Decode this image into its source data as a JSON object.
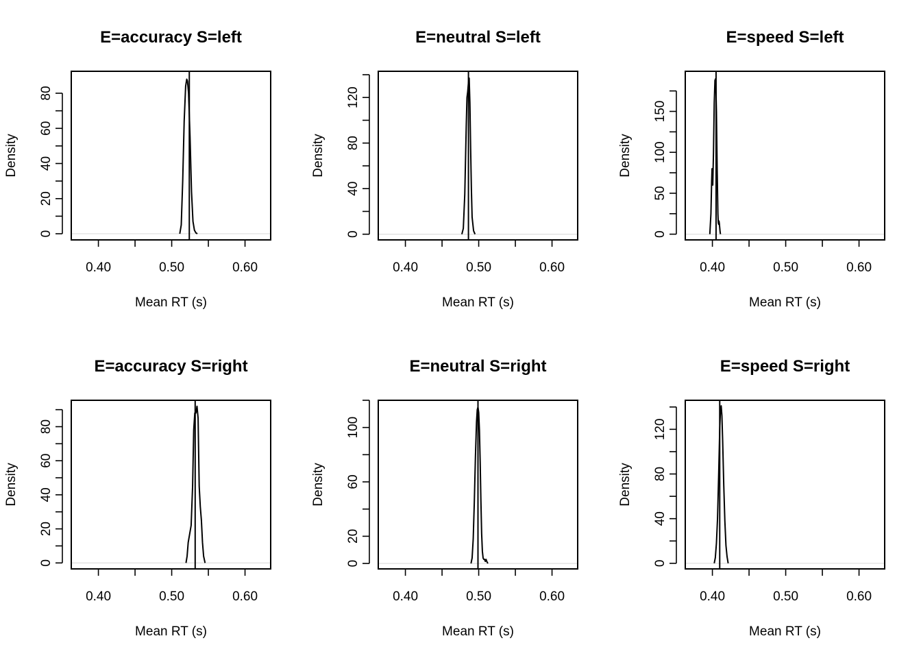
{
  "chart_data": [
    {
      "type": "line",
      "title": "E=accuracy S=left",
      "xlabel": "Mean RT (s)",
      "ylabel": "Density",
      "xlim": [
        0.363,
        0.635
      ],
      "ylim": [
        -3.5,
        92.5
      ],
      "x_ticks": [
        0.4,
        0.45,
        0.5,
        0.55,
        0.6
      ],
      "x_tick_labels": [
        "0.40",
        "0.50",
        "0.60"
      ],
      "x_tick_label_values": [
        0.4,
        0.5,
        0.6
      ],
      "y_ticks": [
        0,
        10,
        20,
        30,
        40,
        50,
        60,
        70,
        80
      ],
      "y_tick_labels": [
        "0",
        "20",
        "40",
        "60",
        "80"
      ],
      "y_tick_label_values": [
        0,
        20,
        40,
        60,
        80
      ],
      "observed": 0.524,
      "series": [
        {
          "name": "density",
          "x": [
            0.511,
            0.513,
            0.515,
            0.517,
            0.519,
            0.5205,
            0.5215,
            0.523,
            0.525,
            0.527,
            0.529,
            0.531,
            0.533,
            0.535
          ],
          "y": [
            0,
            5,
            30,
            64,
            84,
            88,
            87,
            80,
            55,
            24,
            7,
            2,
            0.5,
            0
          ]
        }
      ]
    },
    {
      "type": "line",
      "title": "E=neutral S=left",
      "xlabel": "Mean RT (s)",
      "ylabel": "Density",
      "xlim": [
        0.363,
        0.635
      ],
      "ylim": [
        -5,
        143
      ],
      "x_ticks": [
        0.4,
        0.45,
        0.5,
        0.55,
        0.6
      ],
      "x_tick_labels": [
        "0.40",
        "0.50",
        "0.60"
      ],
      "x_tick_label_values": [
        0.4,
        0.5,
        0.6
      ],
      "y_ticks": [
        0,
        20,
        40,
        60,
        80,
        100,
        120,
        140
      ],
      "y_tick_labels": [
        "0",
        "40",
        "80",
        "120"
      ],
      "y_tick_label_values": [
        0,
        40,
        80,
        120
      ],
      "observed": 0.486,
      "series": [
        {
          "name": "density",
          "x": [
            0.477,
            0.479,
            0.481,
            0.483,
            0.484,
            0.485,
            0.486,
            0.487,
            0.488,
            0.489,
            0.49,
            0.491,
            0.493,
            0.495
          ],
          "y": [
            0,
            5,
            35,
            95,
            120,
            125,
            133,
            137,
            115,
            75,
            40,
            15,
            3,
            0
          ]
        }
      ]
    },
    {
      "type": "line",
      "title": "E=speed S=left",
      "xlabel": "Mean RT (s)",
      "ylabel": "Density",
      "xlim": [
        0.363,
        0.635
      ],
      "ylim": [
        -7,
        199
      ],
      "x_ticks": [
        0.4,
        0.45,
        0.5,
        0.55,
        0.6
      ],
      "x_tick_labels": [
        "0.40",
        "0.50",
        "0.60"
      ],
      "x_tick_label_values": [
        0.4,
        0.5,
        0.6
      ],
      "y_ticks": [
        0,
        25,
        50,
        75,
        100,
        125,
        150,
        175
      ],
      "y_tick_labels": [
        "0",
        "50",
        "100",
        "150"
      ],
      "y_tick_label_values": [
        0,
        50,
        100,
        150
      ],
      "observed": 0.405,
      "series": [
        {
          "name": "density",
          "x": [
            0.3965,
            0.398,
            0.399,
            0.3995,
            0.4005,
            0.4015,
            0.4025,
            0.4035,
            0.4045,
            0.4055,
            0.4065,
            0.4075,
            0.408,
            0.4085,
            0.409,
            0.4095,
            0.41,
            0.4105,
            0.411
          ],
          "y": [
            0,
            25,
            65,
            80,
            60,
            100,
            160,
            188,
            190,
            150,
            80,
            25,
            14,
            12,
            16,
            13,
            8,
            3,
            0
          ]
        }
      ]
    },
    {
      "type": "line",
      "title": "E=accuracy S=right",
      "xlabel": "Mean RT (s)",
      "ylabel": "Density",
      "xlim": [
        0.363,
        0.635
      ],
      "ylim": [
        -3.5,
        95.5
      ],
      "x_ticks": [
        0.4,
        0.45,
        0.5,
        0.55,
        0.6
      ],
      "x_tick_labels": [
        "0.40",
        "0.50",
        "0.60"
      ],
      "x_tick_label_values": [
        0.4,
        0.5,
        0.6
      ],
      "y_ticks": [
        0,
        10,
        20,
        30,
        40,
        50,
        60,
        70,
        80,
        90
      ],
      "y_tick_labels": [
        "0",
        "20",
        "40",
        "60",
        "80"
      ],
      "y_tick_label_values": [
        0,
        20,
        40,
        60,
        80
      ],
      "observed": 0.532,
      "series": [
        {
          "name": "density",
          "x": [
            0.5195,
            0.521,
            0.5225,
            0.5245,
            0.5265,
            0.5285,
            0.53,
            0.5315,
            0.533,
            0.5345,
            0.536,
            0.5375,
            0.539,
            0.5405,
            0.542,
            0.5435,
            0.5455
          ],
          "y": [
            0,
            4,
            12,
            17,
            22,
            45,
            78,
            88,
            88,
            92,
            85,
            45,
            33,
            25,
            12,
            4,
            0
          ]
        }
      ]
    },
    {
      "type": "line",
      "title": "E=neutral S=right",
      "xlabel": "Mean RT (s)",
      "ylabel": "Density",
      "xlim": [
        0.363,
        0.635
      ],
      "ylim": [
        -4,
        120
      ],
      "x_ticks": [
        0.4,
        0.45,
        0.5,
        0.55,
        0.6
      ],
      "x_tick_labels": [
        "0.40",
        "0.50",
        "0.60"
      ],
      "x_tick_label_values": [
        0.4,
        0.5,
        0.6
      ],
      "y_ticks": [
        0,
        20,
        40,
        60,
        80,
        100,
        120
      ],
      "y_tick_labels": [
        "0",
        "20",
        "60",
        "100"
      ],
      "y_tick_label_values": [
        0,
        20,
        60,
        100
      ],
      "observed": 0.499,
      "series": [
        {
          "name": "density",
          "x": [
            0.4895,
            0.491,
            0.4925,
            0.494,
            0.4955,
            0.497,
            0.498,
            0.499,
            0.5,
            0.501,
            0.502,
            0.503,
            0.504,
            0.505,
            0.506,
            0.507,
            0.508,
            0.509,
            0.51,
            0.511,
            0.5125
          ],
          "y": [
            0,
            4,
            18,
            45,
            78,
            104,
            113,
            115,
            111,
            98,
            75,
            46,
            22,
            9,
            4,
            3,
            3,
            1.5,
            3,
            1.5,
            0
          ]
        }
      ]
    },
    {
      "type": "line",
      "title": "E=speed S=right",
      "xlabel": "Mean RT (s)",
      "ylabel": "Density",
      "xlim": [
        0.363,
        0.635
      ],
      "ylim": [
        -5,
        146
      ],
      "x_ticks": [
        0.4,
        0.45,
        0.5,
        0.55,
        0.6
      ],
      "x_tick_labels": [
        "0.40",
        "0.50",
        "0.60"
      ],
      "x_tick_label_values": [
        0.4,
        0.5,
        0.6
      ],
      "y_ticks": [
        0,
        20,
        40,
        60,
        80,
        100,
        120,
        140
      ],
      "y_tick_labels": [
        "0",
        "40",
        "80",
        "120"
      ],
      "y_tick_label_values": [
        0,
        40,
        80,
        120
      ],
      "observed": 0.41,
      "series": [
        {
          "name": "density",
          "x": [
            0.4025,
            0.404,
            0.4055,
            0.407,
            0.4085,
            0.41,
            0.411,
            0.412,
            0.413,
            0.414,
            0.4155,
            0.417,
            0.4185,
            0.42,
            0.4215
          ],
          "y": [
            0,
            5,
            18,
            40,
            78,
            120,
            137,
            141,
            132,
            110,
            70,
            38,
            16,
            6,
            0
          ]
        }
      ]
    }
  ]
}
